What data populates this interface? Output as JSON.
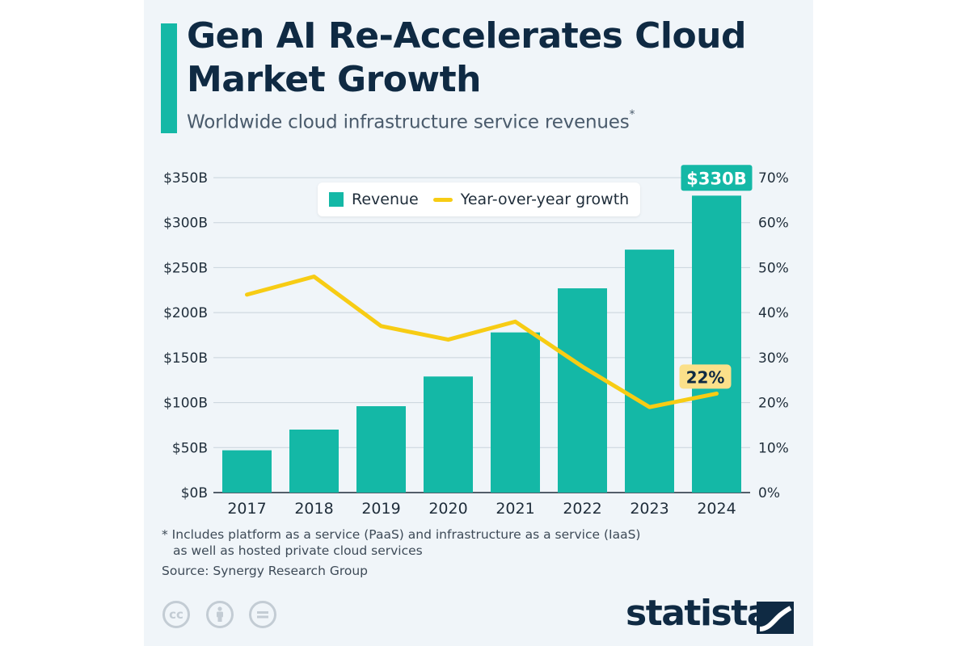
{
  "header": {
    "title": "Gen AI Re-Accelerates Cloud Market Growth",
    "subtitle": "Worldwide cloud infrastructure service revenues",
    "subtitle_mark": "*"
  },
  "legend": {
    "revenue_label": "Revenue",
    "growth_label": "Year-over-year growth"
  },
  "chart_data": {
    "type": "bar",
    "categories": [
      "2017",
      "2018",
      "2019",
      "2020",
      "2021",
      "2022",
      "2023",
      "2024"
    ],
    "series": [
      {
        "name": "Revenue",
        "type": "bar",
        "axis": "left",
        "values": [
          47,
          70,
          96,
          129,
          178,
          227,
          270,
          330
        ]
      },
      {
        "name": "Year-over-year growth",
        "type": "line",
        "axis": "right",
        "values": [
          44,
          48,
          37,
          34,
          38,
          28,
          19,
          22
        ]
      }
    ],
    "left_axis": {
      "ylim": [
        0,
        350
      ],
      "ticks": [
        "$0B",
        "$50B",
        "$100B",
        "$150B",
        "$200B",
        "$250B",
        "$300B",
        "$350B"
      ]
    },
    "right_axis": {
      "ylim": [
        0,
        70
      ],
      "ticks": [
        "0%",
        "10%",
        "20%",
        "30%",
        "40%",
        "50%",
        "60%",
        "70%"
      ]
    },
    "annotations": {
      "last_bar_label": "$330B",
      "last_point_label": "22%"
    },
    "grid": true,
    "legend_position": "top-left",
    "colors": {
      "bar": "#14b8a6",
      "line": "#f7cc14",
      "point_label_bg": "#fbe08a",
      "text": "#0f2a43"
    }
  },
  "footer": {
    "footnote_line1": "* Includes platform as a service (PaaS) and infrastructure as a service (IaaS)",
    "footnote_line2": "as well as hosted private cloud services",
    "source": "Source: Synergy Research Group",
    "license_icons": [
      "cc",
      "by",
      "nd"
    ],
    "license_icon_names": [
      "creative-commons-icon",
      "attribution-icon",
      "no-derivatives-icon"
    ],
    "brand": "statista"
  }
}
